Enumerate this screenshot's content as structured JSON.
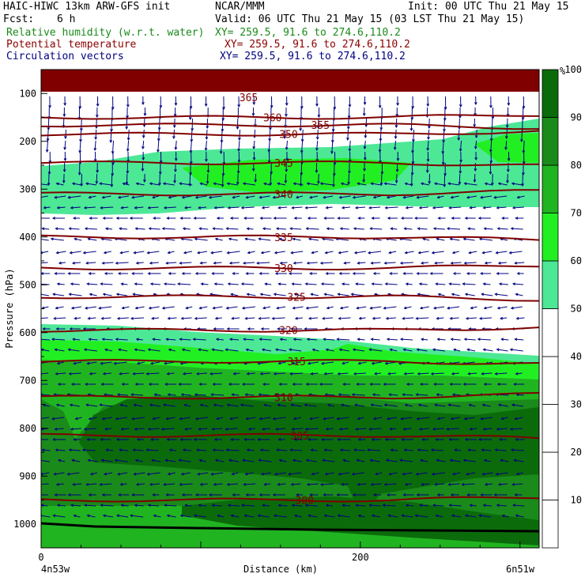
{
  "header": {
    "model": "HAIC-HIWC 13km ARW-GFS init",
    "org": "NCAR/MMM",
    "init": "Init: 00 UTC Thu 21 May 15",
    "fcst_label": "Fcst:",
    "fcst_value": "6 h",
    "valid": "Valid: 06 UTC Thu 21 May 15 (03 LST Thu 21 May 15)",
    "fields": [
      {
        "name": "Relative humidity (w.r.t. water)",
        "xy": "XY= 259.5, 91.6 to 274.6,110.2",
        "color": "#1a8a1a"
      },
      {
        "name": "Potential temperature",
        "xy": "XY= 259.5, 91.6 to 274.6,110.2",
        "color": "#8b0000"
      },
      {
        "name": "Circulation vectors",
        "xy": "XY= 259.5, 91.6 to 274.6,110.2",
        "color": "#000080"
      }
    ]
  },
  "colors": {
    "rh_50": "#4de896",
    "rh_60": "#22ef22",
    "rh_70": "#21b421",
    "rh_80": "#1a8a1a",
    "rh_90": "#0b6b0b",
    "rh_100": "#f08080",
    "theta": "#800000",
    "vectors": "#000080",
    "top_band": "#800000"
  },
  "chart_data": {
    "type": "heatmap",
    "xlabel": "Distance (km)",
    "ylabel": "Pressure (hPa)",
    "x_ticks": [
      0,
      200
    ],
    "x_range": [
      0,
      312
    ],
    "y_ticks": [
      100,
      200,
      300,
      400,
      500,
      600,
      700,
      800,
      900,
      1000
    ],
    "y_range": [
      50,
      1050
    ],
    "x_end_labels": {
      "left": "4n53w",
      "right": "6n51w"
    },
    "colorbar": {
      "unit": "%",
      "labels": [
        10,
        20,
        30,
        40,
        50,
        60,
        70,
        80,
        90,
        100
      ],
      "shaded_from": 50
    },
    "theta_contours": [
      {
        "value": 360,
        "label": "360",
        "label_x": 145,
        "p": 150
      },
      {
        "value": 355,
        "label": "355",
        "label_x": 175,
        "p": 166
      },
      {
        "value": 350,
        "label": "350",
        "label_x": 155,
        "p": 185
      },
      {
        "value": 345,
        "label": "345",
        "label_x": 152,
        "p": 245
      },
      {
        "value": 340,
        "label": "340",
        "label_x": 152,
        "p": 310
      },
      {
        "value": 335,
        "label": "335",
        "label_x": 152,
        "p": 400
      },
      {
        "value": 330,
        "label": "330",
        "label_x": 152,
        "p": 465
      },
      {
        "value": 325,
        "label": "325",
        "label_x": 160,
        "p": 525
      },
      {
        "value": 320,
        "label": "320",
        "label_x": 155,
        "p": 595
      },
      {
        "value": 315,
        "label": "315",
        "label_x": 160,
        "p": 660
      },
      {
        "value": 310,
        "label": "310",
        "label_x": 152,
        "p": 735
      },
      {
        "value": 305,
        "label": "305",
        "label_x": 162,
        "p": 815
      },
      {
        "value": 300,
        "label": "300",
        "label_x": 165,
        "p": 950
      }
    ],
    "top_label": "365"
  }
}
